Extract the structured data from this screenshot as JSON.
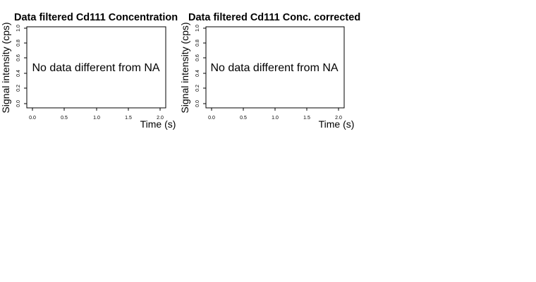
{
  "chart_data": [
    {
      "type": "line",
      "title": "Data filtered Cd111 Concentration",
      "xlabel": "Time (s)",
      "ylabel": "Signal intensity (cps)",
      "xlim": [
        0,
        2
      ],
      "ylim": [
        0,
        1
      ],
      "x_ticks": [
        "0.0",
        "0.5",
        "1.0",
        "1.5",
        "2.0"
      ],
      "y_ticks": [
        "0.0",
        "0.2",
        "0.4",
        "0.6",
        "0.8",
        "1.0"
      ],
      "message": "No data different from NA",
      "series": []
    },
    {
      "type": "line",
      "title": "Data filtered Cd111 Conc. corrected",
      "xlabel": "Time (s)",
      "ylabel": "Signal intensity (cps)",
      "xlim": [
        0,
        2
      ],
      "ylim": [
        0,
        1
      ],
      "x_ticks": [
        "0.0",
        "0.5",
        "1.0",
        "1.5",
        "2.0"
      ],
      "y_ticks": [
        "0.0",
        "0.2",
        "0.4",
        "0.6",
        "0.8",
        "1.0"
      ],
      "message": "No data different from NA",
      "series": []
    }
  ]
}
